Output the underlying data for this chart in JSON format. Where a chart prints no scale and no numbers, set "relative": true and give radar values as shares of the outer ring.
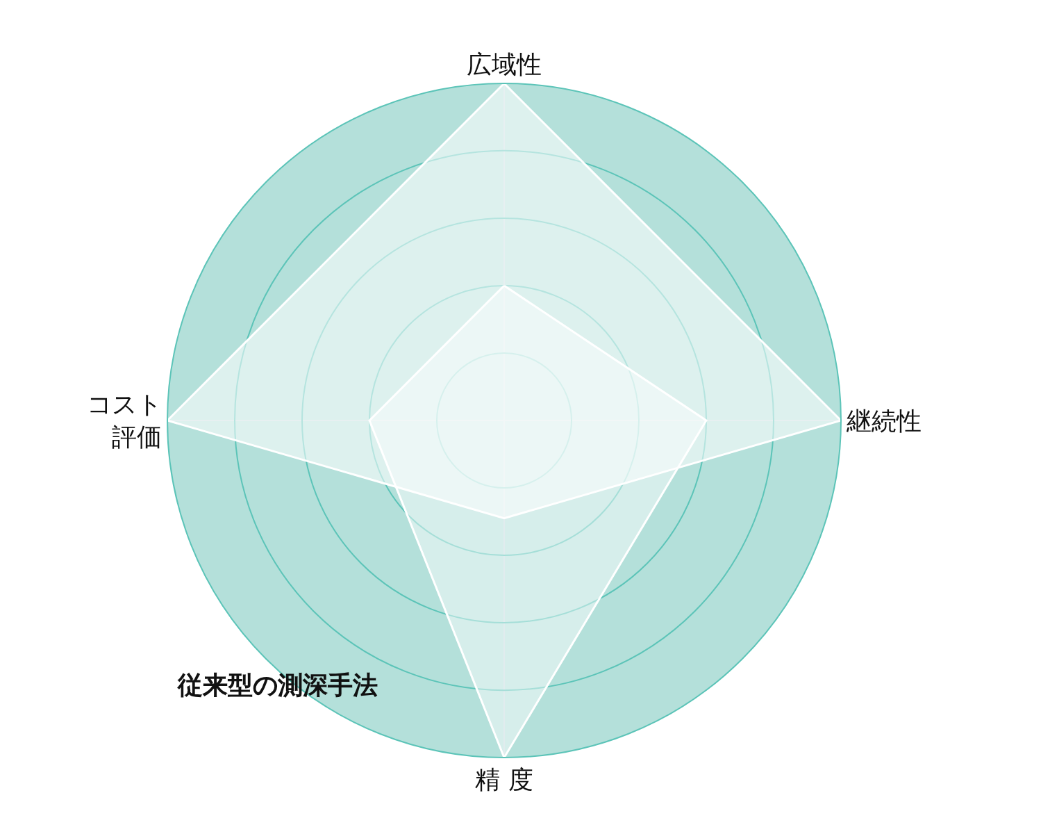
{
  "chart_data": {
    "type": "radar",
    "relative": true,
    "categories": [
      "広域性",
      "継続性",
      "精 度",
      "コスト評価"
    ],
    "series": [
      {
        "color": "#ffffff",
        "values": [
          1,
          1,
          0.29,
          1
        ]
      },
      {
        "name": "従来型の測深手法",
        "color": "#ffffff",
        "values": [
          0.4,
          0.6,
          1,
          0.4
        ]
      }
    ],
    "legend": false,
    "grid": true,
    "marker": "none"
  }
}
